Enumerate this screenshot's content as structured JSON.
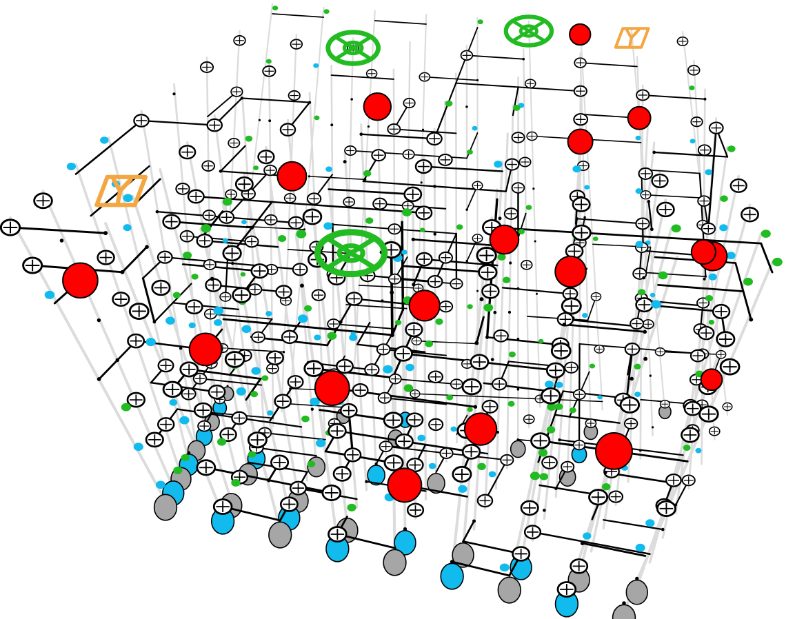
{
  "scene": {
    "kind": "isometric-3d-circuit-puzzle",
    "background": "#ffffff",
    "grid": {
      "cols": 9,
      "rows": 9,
      "levels": 8
    },
    "colors": {
      "pillar": "#dcdcdc",
      "wire": "#000000",
      "node_fill": "#ffffff",
      "red": "#ff0000",
      "green": "#22bb22",
      "blue": "#11bbee",
      "grey": "#a6a6a6",
      "orange": "#f2a742"
    },
    "icons": {
      "node": "crosshair-ring-icon",
      "red": "red-ball-icon",
      "green": "green-marker-icon",
      "blue": "blue-marker-icon",
      "grey": "grey-floor-pad-icon",
      "orange": "orange-y-frame-icon",
      "big_green": "green-cross-wheel-icon"
    },
    "special": [
      {
        "type": "big_green",
        "i": 3,
        "j": 3,
        "k": 5
      },
      {
        "type": "big_green",
        "i": 2,
        "j": 7,
        "k": 7
      },
      {
        "type": "big_green",
        "i": 5,
        "j": 8,
        "k": 7
      },
      {
        "type": "orange",
        "i": 0,
        "j": 3,
        "k": 6
      },
      {
        "type": "orange",
        "i": 7,
        "j": 8,
        "k": 7
      },
      {
        "type": "red",
        "i": 0,
        "j": 1,
        "k": 5
      },
      {
        "type": "red",
        "i": 8,
        "j": 7,
        "k": 1
      },
      {
        "type": "red",
        "i": 7,
        "j": 0,
        "k": 3
      },
      {
        "type": "red",
        "i": 3,
        "j": 1,
        "k": 3
      },
      {
        "type": "red",
        "i": 4,
        "j": 3,
        "k": 4
      },
      {
        "type": "red",
        "i": 5,
        "j": 4,
        "k": 5
      },
      {
        "type": "red",
        "i": 2,
        "j": 4,
        "k": 6
      },
      {
        "type": "red",
        "i": 6,
        "j": 6,
        "k": 6
      },
      {
        "type": "red",
        "i": 7,
        "j": 7,
        "k": 6
      },
      {
        "type": "red",
        "i": 8,
        "j": 4,
        "k": 5
      },
      {
        "type": "red",
        "i": 5,
        "j": 2,
        "k": 2
      },
      {
        "type": "red",
        "i": 6,
        "j": 8,
        "k": 7
      },
      {
        "type": "red",
        "i": 1,
        "j": 2,
        "k": 3
      },
      {
        "type": "red",
        "i": 4,
        "j": 1,
        "k": 1
      },
      {
        "type": "red",
        "i": 8,
        "j": 6,
        "k": 4
      },
      {
        "type": "red",
        "i": 3,
        "j": 5,
        "k": 7
      },
      {
        "type": "red",
        "i": 6,
        "j": 3,
        "k": 5
      }
    ]
  }
}
